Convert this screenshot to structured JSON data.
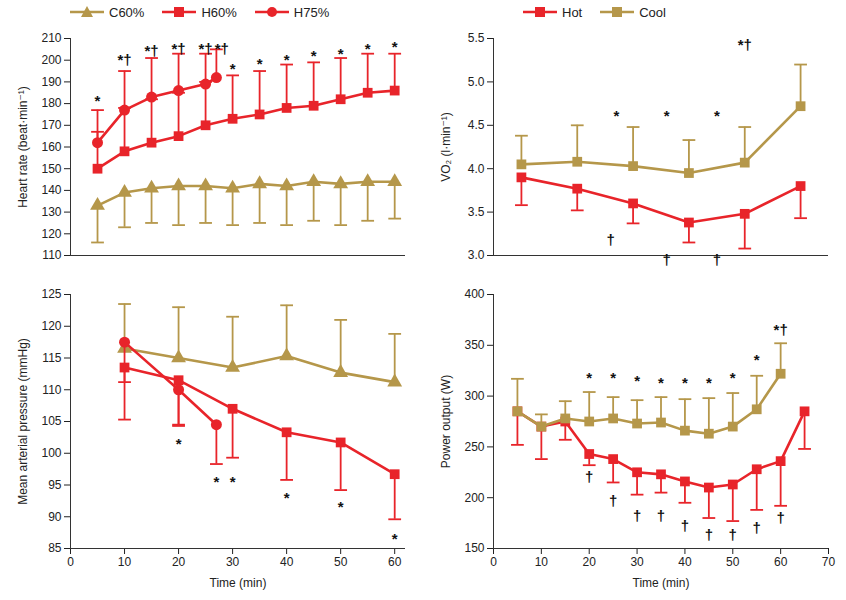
{
  "chart_data": [
    {
      "type": "line",
      "y_label": "Heart rate (beat·min⁻¹)",
      "xlim": [
        0,
        62
      ],
      "ylim": [
        110,
        210
      ],
      "yticks": [
        110,
        120,
        130,
        140,
        150,
        160,
        170,
        180,
        190,
        200,
        210
      ],
      "tick_labels": "y",
      "legend": "top",
      "grid": false,
      "series": [
        {
          "name": "C60%",
          "color": "#b5974a",
          "marker": "triangle",
          "x": [
            5,
            10,
            15,
            20,
            25,
            30,
            35,
            40,
            45,
            50,
            55,
            60
          ],
          "values": [
            133,
            139,
            141,
            142,
            142,
            141,
            143,
            142,
            144,
            143,
            144,
            144
          ],
          "error_minus": [
            17,
            16,
            16,
            18,
            17,
            17,
            18,
            18,
            18,
            19,
            18,
            17
          ]
        },
        {
          "name": "H60%",
          "color": "#e8242a",
          "marker": "square",
          "x": [
            5,
            10,
            15,
            20,
            25,
            30,
            35,
            40,
            45,
            50,
            55,
            60
          ],
          "values": [
            150,
            158,
            162,
            165,
            170,
            173,
            175,
            178,
            179,
            182,
            185,
            186
          ],
          "error_plus": [
            17,
            20,
            20,
            20,
            20,
            20,
            20,
            20,
            20,
            19,
            18,
            17
          ]
        },
        {
          "name": "H75%",
          "color": "#e8242a",
          "marker": "circle",
          "x": [
            5,
            10,
            15,
            20,
            25,
            27
          ],
          "values": [
            162,
            177,
            183,
            186,
            189,
            192
          ],
          "error_plus": [
            15,
            18,
            18,
            17,
            14,
            13
          ]
        }
      ],
      "annotations": [
        {
          "x": 5,
          "y": 181,
          "text": "*"
        },
        {
          "x": 10,
          "y": 200,
          "text": "*†"
        },
        {
          "x": 15,
          "y": 204,
          "text": "*†"
        },
        {
          "x": 20,
          "y": 205,
          "text": "*†"
        },
        {
          "x": 25,
          "y": 205,
          "text": "*†"
        },
        {
          "x": 28,
          "y": 205,
          "text": "*†"
        },
        {
          "x": 30,
          "y": 196,
          "text": "*"
        },
        {
          "x": 35,
          "y": 198,
          "text": "*"
        },
        {
          "x": 40,
          "y": 200,
          "text": "*"
        },
        {
          "x": 45,
          "y": 202,
          "text": "*"
        },
        {
          "x": 50,
          "y": 203,
          "text": "*"
        },
        {
          "x": 55,
          "y": 205,
          "text": "*"
        },
        {
          "x": 60,
          "y": 206,
          "text": "*"
        }
      ]
    },
    {
      "type": "line",
      "x_label": "Time (min)",
      "y_label": "Mean arterial pressure (mmHg)",
      "xlim": [
        0,
        62
      ],
      "ylim": [
        85,
        125
      ],
      "xticks": [
        0,
        10,
        20,
        30,
        40,
        50,
        60
      ],
      "yticks": [
        85,
        90,
        95,
        100,
        105,
        110,
        115,
        120,
        125
      ],
      "grid": false,
      "series": [
        {
          "name": "C60%",
          "color": "#b5974a",
          "marker": "triangle",
          "x": [
            10,
            20,
            30,
            40,
            50,
            60
          ],
          "values": [
            116.5,
            115,
            113.5,
            115.3,
            112.7,
            111.2
          ],
          "error_plus": [
            7,
            8,
            8,
            8,
            8.3,
            7.6
          ]
        },
        {
          "name": "H60%",
          "color": "#e8242a",
          "marker": "square",
          "x": [
            10,
            20,
            30,
            40,
            50,
            60
          ],
          "values": [
            113.5,
            111.5,
            107,
            103.3,
            101.7,
            96.7
          ],
          "error_minus": [
            8.2,
            7,
            7.7,
            7.5,
            7.5,
            7.1
          ]
        },
        {
          "name": "H75%",
          "color": "#e8242a",
          "marker": "circle",
          "x": [
            10,
            20,
            27
          ],
          "values": [
            117.5,
            110,
            104.5
          ],
          "error_minus": [
            6.3,
            5.7,
            6.2
          ]
        }
      ],
      "annotations": [
        {
          "x": 20,
          "y": 101.5,
          "text": "*"
        },
        {
          "x": 27,
          "y": 95.5,
          "text": "*"
        },
        {
          "x": 30,
          "y": 95.5,
          "text": "*"
        },
        {
          "x": 40,
          "y": 93,
          "text": "*"
        },
        {
          "x": 50,
          "y": 91.5,
          "text": "*"
        },
        {
          "x": 60,
          "y": 86.5,
          "text": "*"
        }
      ]
    },
    {
      "type": "line",
      "y_label": "VO₂ (l·min⁻¹)",
      "xlim": [
        5,
        65
      ],
      "ylim": [
        3,
        5.5
      ],
      "yticks": [
        {
          "value": 3,
          "label": "3.0"
        },
        3.5,
        {
          "value": 4,
          "label": "4.0"
        },
        4.5,
        {
          "value": 5,
          "label": "5.0"
        },
        5.5
      ],
      "tick_labels": "y",
      "legend": "top",
      "grid": false,
      "series": [
        {
          "name": "Hot",
          "color": "#e8242a",
          "marker": "square",
          "x": [
            10,
            20,
            30,
            40,
            50,
            60
          ],
          "values": [
            3.9,
            3.77,
            3.6,
            3.38,
            3.48,
            3.8
          ],
          "error_minus": [
            0.32,
            0.25,
            0.23,
            0.23,
            0.4,
            0.37
          ]
        },
        {
          "name": "Cool",
          "color": "#b5974a",
          "marker": "square",
          "x": [
            10,
            20,
            30,
            40,
            50,
            60
          ],
          "values": [
            4.05,
            4.08,
            4.03,
            3.95,
            4.07,
            4.72
          ],
          "error_plus": [
            0.33,
            0.42,
            0.45,
            0.38,
            0.41,
            0.48
          ]
        }
      ],
      "annotations": [
        {
          "x": 27,
          "y": 4.6,
          "text": "*"
        },
        {
          "x": 36,
          "y": 4.6,
          "text": "*"
        },
        {
          "x": 45,
          "y": 4.6,
          "text": "*"
        },
        {
          "x": 50,
          "y": 5.42,
          "text": "*†"
        },
        {
          "x": 26,
          "y": 3.18,
          "text": "†"
        },
        {
          "x": 36,
          "y": 2.95,
          "text": "†"
        },
        {
          "x": 45,
          "y": 2.95,
          "text": "†"
        }
      ]
    },
    {
      "type": "line",
      "x_label": "Time (min)",
      "y_label": "Power output (W)",
      "xlim": [
        0,
        70
      ],
      "ylim": [
        150,
        400
      ],
      "xticks": [
        0,
        10,
        20,
        30,
        40,
        50,
        60,
        70
      ],
      "yticks": [
        150,
        200,
        250,
        300,
        350,
        400
      ],
      "grid": false,
      "series": [
        {
          "name": "Hot",
          "color": "#e8242a",
          "marker": "square",
          "x": [
            5,
            10,
            15,
            20,
            25,
            30,
            35,
            40,
            45,
            50,
            55,
            60,
            65
          ],
          "values": [
            285,
            270,
            275,
            243,
            238,
            225,
            223,
            216,
            210,
            213,
            228,
            236,
            285
          ],
          "error_minus": [
            33,
            32,
            18,
            11,
            23,
            22,
            18,
            21,
            30,
            36,
            40,
            44,
            37
          ]
        },
        {
          "name": "Cool",
          "color": "#b5974a",
          "marker": "square",
          "x": [
            5,
            10,
            15,
            20,
            25,
            30,
            35,
            40,
            45,
            50,
            55,
            60
          ],
          "values": [
            285,
            270,
            278,
            275,
            278,
            273,
            274,
            266,
            263,
            270,
            287,
            322
          ],
          "error_plus": [
            32,
            12,
            17,
            29,
            21,
            23,
            25,
            31,
            35,
            33,
            33,
            30
          ]
        }
      ],
      "annotations": [
        {
          "x": 20,
          "y": 318,
          "text": "*"
        },
        {
          "x": 25,
          "y": 318,
          "text": "*"
        },
        {
          "x": 30,
          "y": 315,
          "text": "*"
        },
        {
          "x": 35,
          "y": 313,
          "text": "*"
        },
        {
          "x": 40,
          "y": 313,
          "text": "*"
        },
        {
          "x": 45,
          "y": 313,
          "text": "*"
        },
        {
          "x": 50,
          "y": 318,
          "text": "*"
        },
        {
          "x": 55,
          "y": 335,
          "text": "*"
        },
        {
          "x": 60,
          "y": 365,
          "text": "*†"
        },
        {
          "x": 20,
          "y": 220,
          "text": "†"
        },
        {
          "x": 25,
          "y": 197,
          "text": "†"
        },
        {
          "x": 30,
          "y": 182,
          "text": "†"
        },
        {
          "x": 35,
          "y": 182,
          "text": "†"
        },
        {
          "x": 40,
          "y": 172,
          "text": "†"
        },
        {
          "x": 45,
          "y": 163,
          "text": "†"
        },
        {
          "x": 50,
          "y": 163,
          "text": "†"
        },
        {
          "x": 55,
          "y": 170,
          "text": "†"
        },
        {
          "x": 60,
          "y": 180,
          "text": "†"
        }
      ]
    }
  ]
}
